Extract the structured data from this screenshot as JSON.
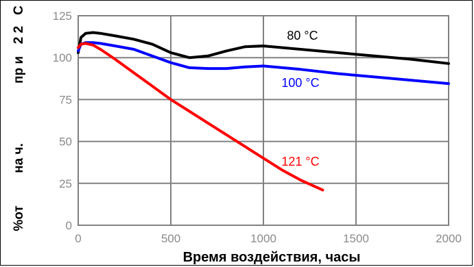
{
  "chart_data": {
    "type": "line",
    "title": "",
    "xlabel": "Время воздействия, часы",
    "ylabel_fragments": [
      "%от",
      "на ч.",
      "пр и",
      "2 2",
      "С"
    ],
    "xlim": [
      0,
      2000
    ],
    "ylim": [
      0,
      125
    ],
    "xticks": [
      "0",
      "500",
      "1000",
      "1500",
      "2000"
    ],
    "yticks": [
      "0",
      "25",
      "50",
      "75",
      "100",
      "125"
    ],
    "grid": true,
    "series": [
      {
        "name": "80 °C",
        "color": "#000000",
        "x": [
          0,
          15,
          40,
          80,
          120,
          200,
          300,
          400,
          500,
          600,
          700,
          800,
          900,
          1000,
          1200,
          1400,
          1600,
          1800,
          2000
        ],
        "y": [
          103,
          112,
          114.5,
          115,
          114.5,
          113,
          111,
          108,
          103,
          100,
          101,
          104,
          106.5,
          107,
          105,
          103,
          101,
          99,
          96.5
        ]
      },
      {
        "name": "100 °C",
        "color": "#0000ff",
        "x": [
          0,
          15,
          40,
          80,
          120,
          200,
          300,
          400,
          500,
          600,
          700,
          800,
          900,
          1000,
          1200,
          1400,
          1600,
          1800,
          2000
        ],
        "y": [
          104,
          108,
          109,
          109,
          108.5,
          107,
          105,
          101,
          97,
          94,
          93.5,
          93.5,
          94.5,
          95,
          93,
          90.5,
          88.5,
          86.5,
          84.5
        ]
      },
      {
        "name": "121 °C",
        "color": "#ff0000",
        "x": [
          0,
          15,
          40,
          80,
          120,
          200,
          300,
          400,
          500,
          600,
          700,
          800,
          900,
          1000,
          1100,
          1200,
          1320
        ],
        "y": [
          106,
          108,
          108.5,
          107.5,
          105,
          99,
          91,
          83,
          75,
          68,
          61,
          54,
          47,
          40,
          33,
          27,
          21
        ]
      }
    ]
  }
}
